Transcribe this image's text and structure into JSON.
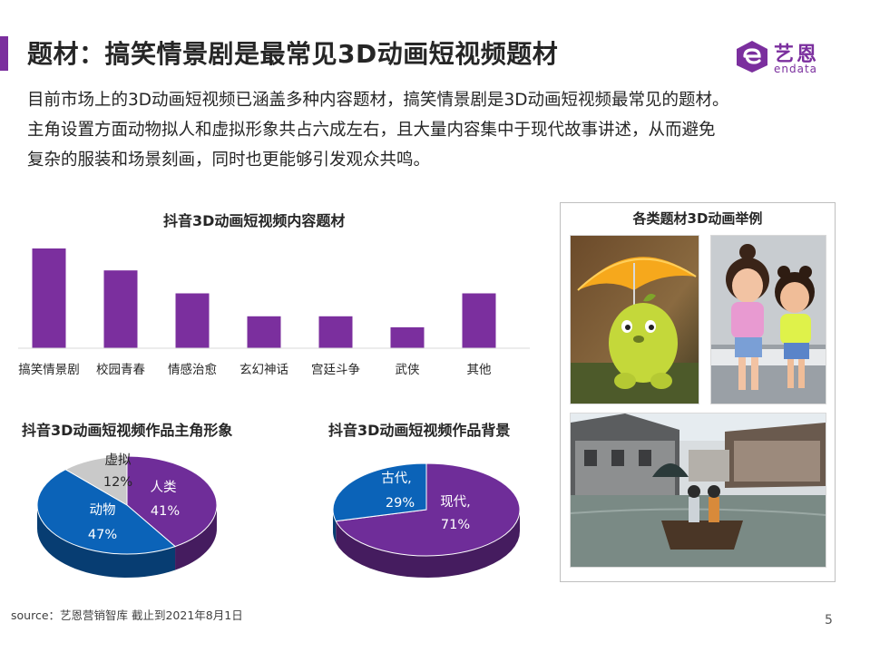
{
  "header": {
    "title": "题材：搞笑情景剧是最常见3D动画短视频题材",
    "accent_color": "#7b2f9e"
  },
  "logo": {
    "cn": "艺恩",
    "en": "endata",
    "icon": "endata-logo-icon"
  },
  "intro_lines": [
    "目前市场上的3D动画短视频已涵盖多种内容题材，搞笑情景剧是3D动画短视频最常见的题材。",
    "主角设置方面动物拟人和虚拟形象共占六成左右，且大量内容集中于现代故事讲述，从而避免",
    "复杂的服装和场景刻画，同时也更能够引发观众共鸣。"
  ],
  "chart_data": [
    {
      "type": "bar",
      "title": "抖音3D动画短视频内容题材",
      "categories": [
        "搞笑情景剧",
        "校园青春",
        "情感治愈",
        "玄幻神话",
        "宫廷斗争",
        "武侠",
        "其他"
      ],
      "values": [
        1.0,
        0.78,
        0.55,
        0.32,
        0.32,
        0.21,
        0.55
      ],
      "ylim": [
        0,
        1.0
      ],
      "grid": false,
      "legend": "none",
      "color": "#7b2f9e"
    },
    {
      "type": "pie",
      "title": "抖音3D动画短视频作品主角形象",
      "slices": [
        {
          "name": "人类",
          "value": 41,
          "label": "41%",
          "color": "#6f2d99"
        },
        {
          "name": "动物",
          "value": 47,
          "label": "47%",
          "color": "#0b63b8"
        },
        {
          "name": "虚拟",
          "value": 12,
          "label": "12%",
          "color": "#c9c9c9"
        }
      ],
      "legend": "none"
    },
    {
      "type": "pie",
      "title": "抖音3D动画短视频作品背景",
      "slices": [
        {
          "name": "现代,",
          "value": 71,
          "label": "71%",
          "color": "#6f2d99"
        },
        {
          "name": "古代,",
          "value": 29,
          "label": "29%",
          "color": "#0b63b8"
        }
      ],
      "legend": "none"
    }
  ],
  "photo_panel": {
    "title": "各类题材3D动画举例",
    "photos": [
      {
        "icon": "yellow-creature-umbrella-image"
      },
      {
        "icon": "two-girls-bench-image"
      },
      {
        "icon": "water-town-boat-image"
      }
    ]
  },
  "footer": {
    "source": "source：艺恩营销智库     截止到2021年8月1日",
    "page": "5"
  }
}
